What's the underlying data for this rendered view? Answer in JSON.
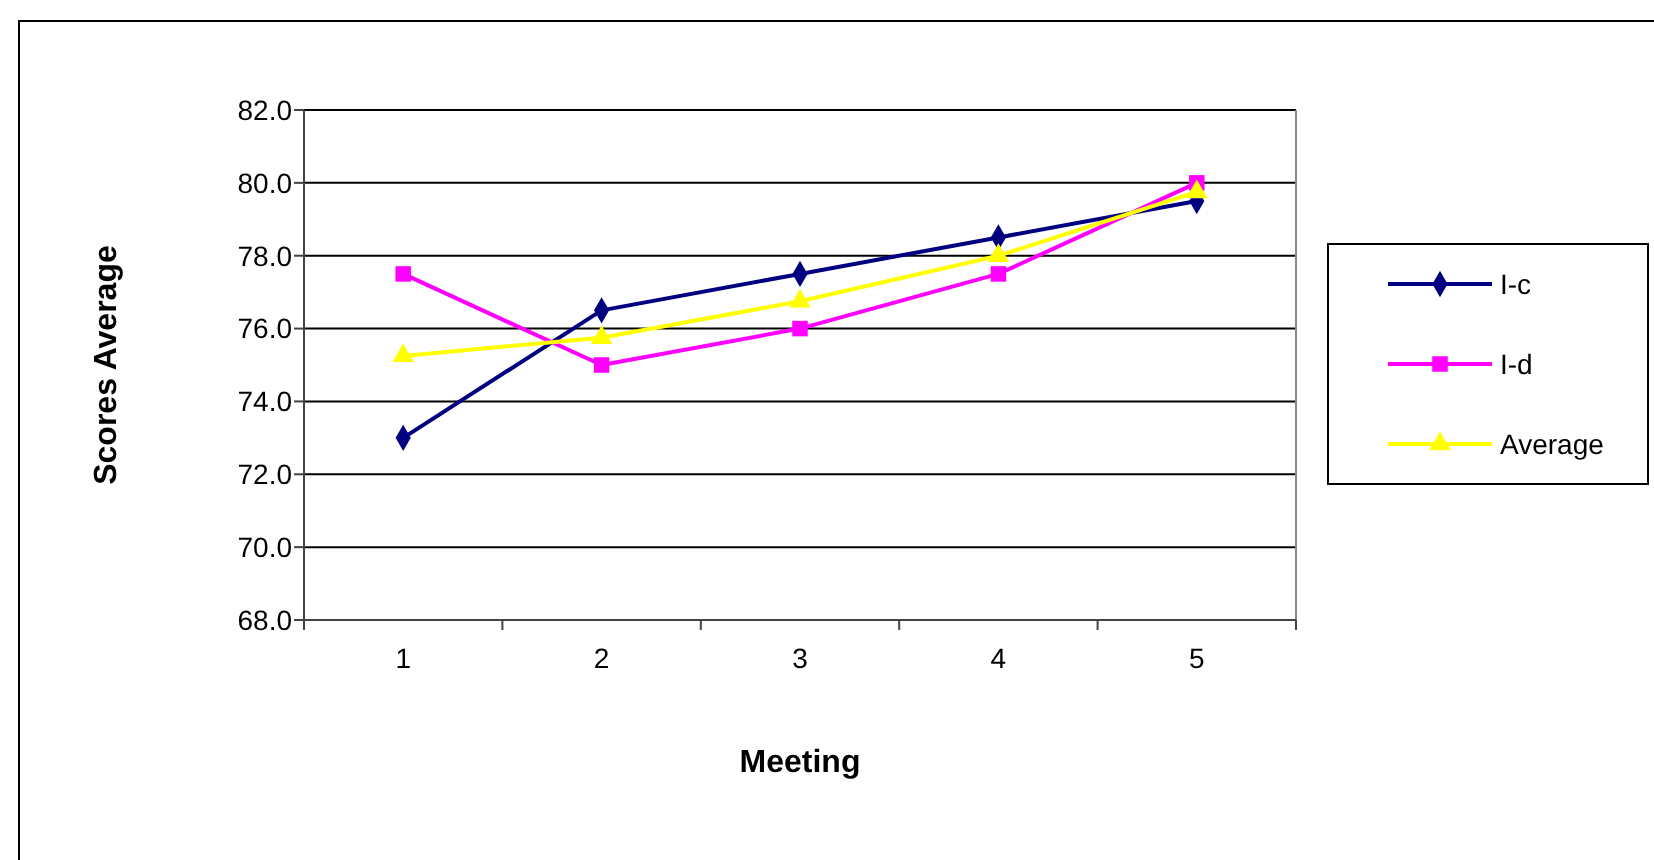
{
  "chart_data": {
    "type": "line",
    "xlabel": "Meeting",
    "ylabel": "Scores Average",
    "categories": [
      "1",
      "2",
      "3",
      "4",
      "5"
    ],
    "series": [
      {
        "name": "I-c",
        "color": "#000080",
        "marker": "diamond",
        "values": [
          73.0,
          76.5,
          77.5,
          78.5,
          79.5
        ]
      },
      {
        "name": "I-d",
        "color": "#ff00ff",
        "marker": "square",
        "values": [
          77.5,
          75.0,
          76.0,
          77.5,
          80.0
        ]
      },
      {
        "name": "Average",
        "color": "#ffff00",
        "marker": "triangle",
        "values": [
          75.25,
          75.75,
          76.75,
          78.0,
          79.75
        ]
      }
    ],
    "ylim": [
      68,
      82
    ],
    "yticks": [
      {
        "value": 68,
        "label": "68.0"
      },
      {
        "value": 70,
        "label": "70.0"
      },
      {
        "value": 72,
        "label": "72.0"
      },
      {
        "value": 74,
        "label": "74.0"
      },
      {
        "value": 76,
        "label": "76.0"
      },
      {
        "value": 78,
        "label": "78.0"
      },
      {
        "value": 80,
        "label": "80.0"
      },
      {
        "value": 82,
        "label": "82.0"
      }
    ],
    "grid": "y",
    "legend": "right"
  }
}
